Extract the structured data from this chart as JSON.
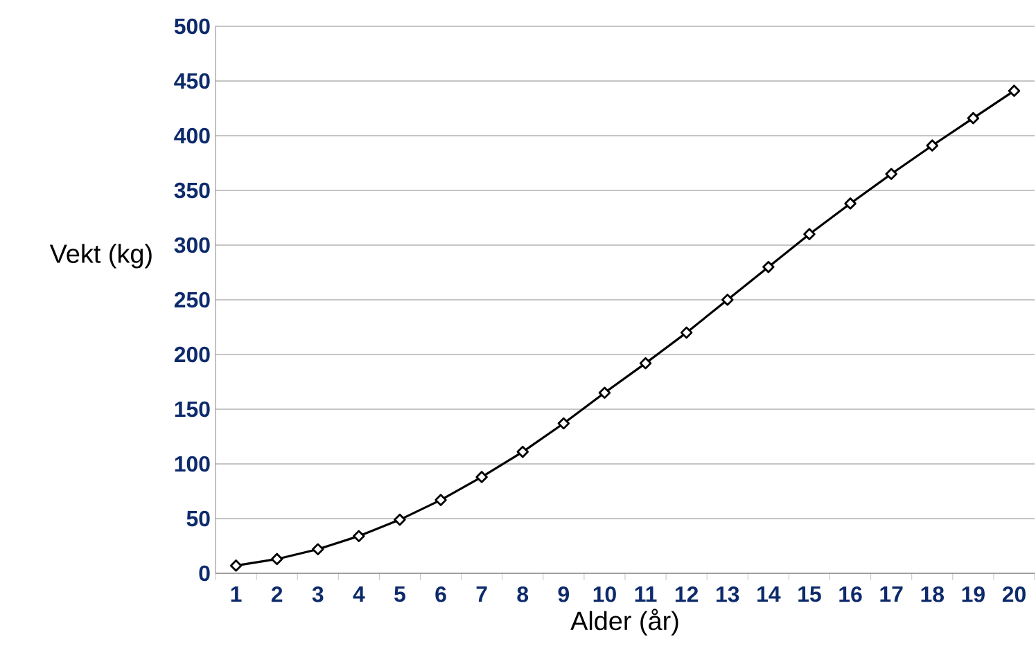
{
  "chart_data": {
    "type": "line",
    "xlabel": "Alder (år)",
    "ylabel": "Vekt (kg)",
    "categories": [
      "1",
      "2",
      "3",
      "4",
      "5",
      "6",
      "7",
      "8",
      "9",
      "10",
      "11",
      "12",
      "13",
      "14",
      "15",
      "16",
      "17",
      "18",
      "19",
      "20"
    ],
    "series": [
      {
        "color": "#000000",
        "values": [
          7,
          13,
          22,
          34,
          49,
          67,
          88,
          111,
          137,
          165,
          192,
          220,
          250,
          280,
          310,
          338,
          365,
          391,
          416,
          441
        ]
      }
    ],
    "ylim": [
      0,
      500
    ],
    "yticks": [
      0,
      50,
      100,
      150,
      200,
      250,
      300,
      350,
      400,
      450,
      500
    ],
    "grid": "y",
    "marker": "diamond",
    "line_style": "solid"
  }
}
